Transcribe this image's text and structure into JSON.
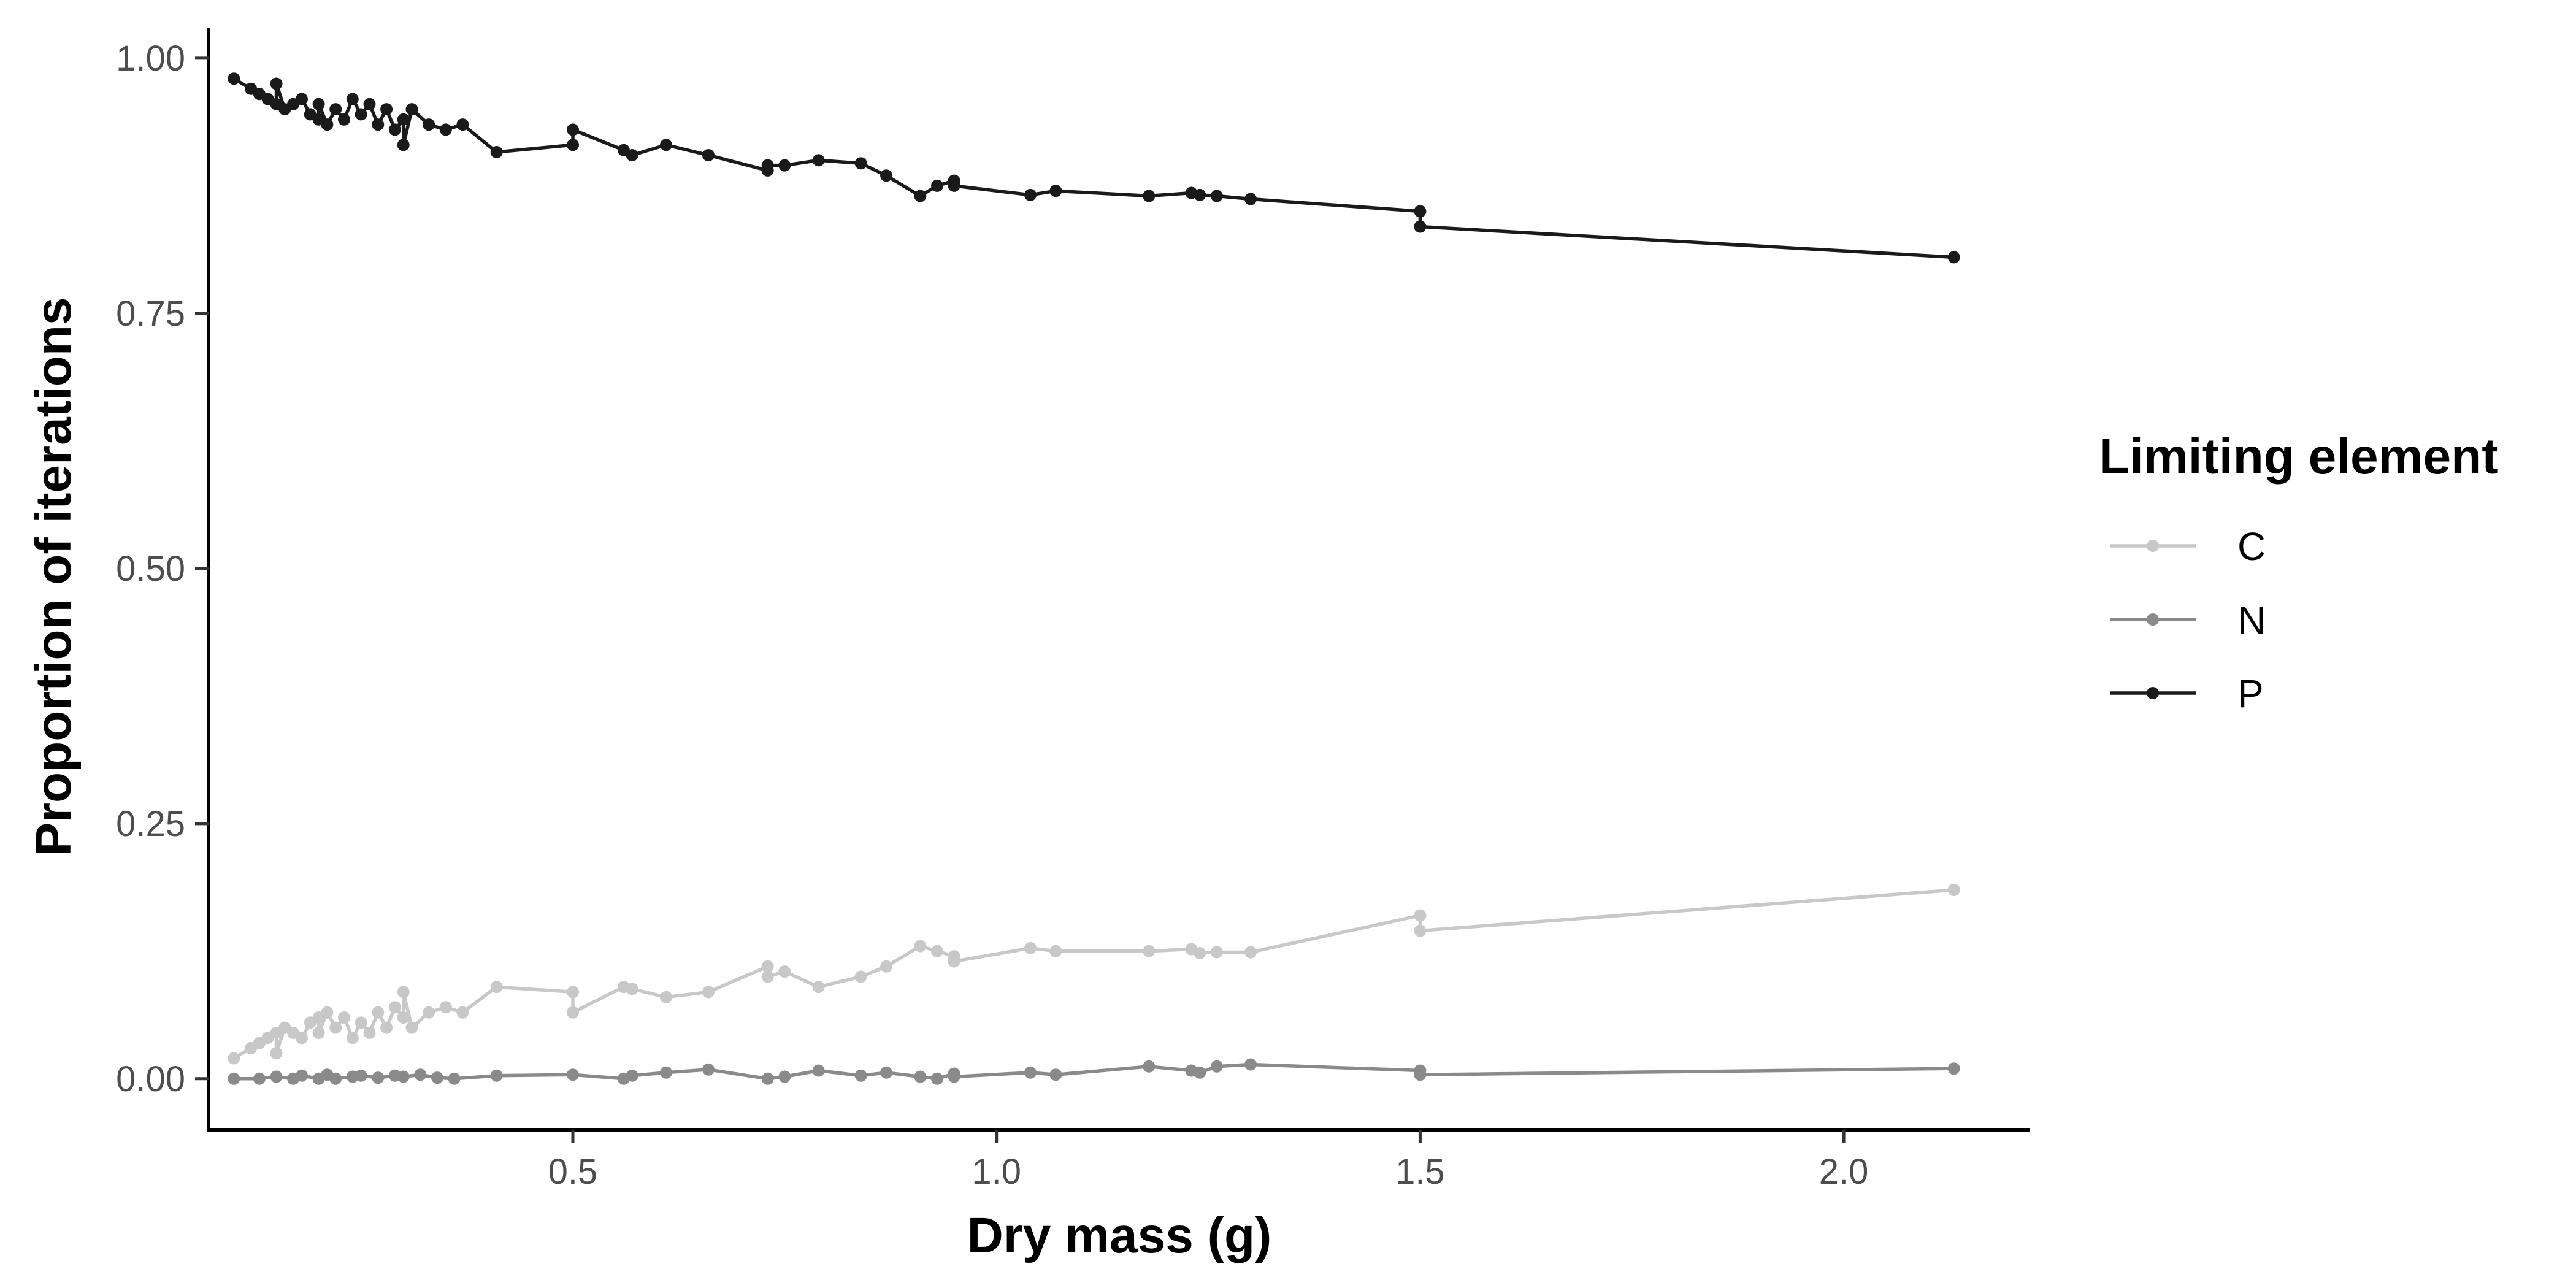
{
  "chart_data": {
    "type": "line",
    "title": "",
    "xlabel": "Dry mass (g)",
    "ylabel": "Proportion of iterations",
    "xlim": [
      0.07,
      2.22
    ],
    "ylim": [
      -0.05,
      1.03
    ],
    "x_ticks": [
      0.5,
      1.0,
      1.5,
      2.0
    ],
    "x_tick_labels": [
      "0.5",
      "1.0",
      "1.5",
      "2.0"
    ],
    "y_ticks": [
      0.0,
      0.25,
      0.5,
      0.75,
      1.0
    ],
    "y_tick_labels": [
      "0.00",
      "0.25",
      "0.50",
      "0.75",
      "1.00"
    ],
    "grid": false,
    "legend": {
      "title": "Limiting element",
      "position": "right"
    },
    "series": [
      {
        "name": "C",
        "color": "#c8c8c8",
        "points": [
          [
            0.1,
            0.02
          ],
          [
            0.12,
            0.03
          ],
          [
            0.13,
            0.035
          ],
          [
            0.14,
            0.04
          ],
          [
            0.15,
            0.045
          ],
          [
            0.15,
            0.025
          ],
          [
            0.16,
            0.05
          ],
          [
            0.17,
            0.045
          ],
          [
            0.18,
            0.04
          ],
          [
            0.19,
            0.055
          ],
          [
            0.2,
            0.06
          ],
          [
            0.2,
            0.045
          ],
          [
            0.21,
            0.065
          ],
          [
            0.22,
            0.05
          ],
          [
            0.23,
            0.06
          ],
          [
            0.24,
            0.04
          ],
          [
            0.25,
            0.055
          ],
          [
            0.26,
            0.045
          ],
          [
            0.27,
            0.065
          ],
          [
            0.28,
            0.05
          ],
          [
            0.29,
            0.07
          ],
          [
            0.3,
            0.06
          ],
          [
            0.3,
            0.085
          ],
          [
            0.31,
            0.05
          ],
          [
            0.33,
            0.065
          ],
          [
            0.35,
            0.07
          ],
          [
            0.37,
            0.065
          ],
          [
            0.41,
            0.09
          ],
          [
            0.5,
            0.085
          ],
          [
            0.5,
            0.065
          ],
          [
            0.56,
            0.09
          ],
          [
            0.57,
            0.088
          ],
          [
            0.61,
            0.08
          ],
          [
            0.66,
            0.085
          ],
          [
            0.73,
            0.11
          ],
          [
            0.73,
            0.1
          ],
          [
            0.75,
            0.105
          ],
          [
            0.79,
            0.09
          ],
          [
            0.84,
            0.1
          ],
          [
            0.87,
            0.11
          ],
          [
            0.91,
            0.13
          ],
          [
            0.93,
            0.125
          ],
          [
            0.95,
            0.12
          ],
          [
            0.95,
            0.115
          ],
          [
            1.04,
            0.128
          ],
          [
            1.07,
            0.125
          ],
          [
            1.18,
            0.125
          ],
          [
            1.23,
            0.127
          ],
          [
            1.24,
            0.123
          ],
          [
            1.26,
            0.124
          ],
          [
            1.3,
            0.124
          ],
          [
            1.5,
            0.16
          ],
          [
            1.5,
            0.145
          ],
          [
            2.13,
            0.185
          ]
        ]
      },
      {
        "name": "N",
        "color": "#8a8a8a",
        "points": [
          [
            0.1,
            0.0
          ],
          [
            0.13,
            0.0
          ],
          [
            0.15,
            0.002
          ],
          [
            0.17,
            0.0
          ],
          [
            0.18,
            0.003
          ],
          [
            0.2,
            0.0
          ],
          [
            0.21,
            0.004
          ],
          [
            0.22,
            0.0
          ],
          [
            0.24,
            0.002
          ],
          [
            0.25,
            0.003
          ],
          [
            0.27,
            0.001
          ],
          [
            0.29,
            0.003
          ],
          [
            0.3,
            0.002
          ],
          [
            0.32,
            0.004
          ],
          [
            0.34,
            0.001
          ],
          [
            0.36,
            0.0
          ],
          [
            0.41,
            0.003
          ],
          [
            0.5,
            0.004
          ],
          [
            0.56,
            0.0
          ],
          [
            0.57,
            0.003
          ],
          [
            0.61,
            0.006
          ],
          [
            0.66,
            0.009
          ],
          [
            0.73,
            0.0
          ],
          [
            0.75,
            0.002
          ],
          [
            0.79,
            0.008
          ],
          [
            0.84,
            0.003
          ],
          [
            0.87,
            0.006
          ],
          [
            0.91,
            0.002
          ],
          [
            0.93,
            0.0
          ],
          [
            0.95,
            0.005
          ],
          [
            0.95,
            0.002
          ],
          [
            1.04,
            0.006
          ],
          [
            1.07,
            0.004
          ],
          [
            1.18,
            0.012
          ],
          [
            1.23,
            0.008
          ],
          [
            1.24,
            0.006
          ],
          [
            1.26,
            0.012
          ],
          [
            1.3,
            0.014
          ],
          [
            1.5,
            0.008
          ],
          [
            1.5,
            0.004
          ],
          [
            2.13,
            0.01
          ]
        ]
      },
      {
        "name": "P",
        "color": "#1a1a1a",
        "points": [
          [
            0.1,
            0.98
          ],
          [
            0.12,
            0.97
          ],
          [
            0.13,
            0.965
          ],
          [
            0.14,
            0.96
          ],
          [
            0.15,
            0.955
          ],
          [
            0.15,
            0.975
          ],
          [
            0.16,
            0.95
          ],
          [
            0.17,
            0.955
          ],
          [
            0.18,
            0.96
          ],
          [
            0.19,
            0.945
          ],
          [
            0.2,
            0.94
          ],
          [
            0.2,
            0.955
          ],
          [
            0.21,
            0.935
          ],
          [
            0.22,
            0.95
          ],
          [
            0.23,
            0.94
          ],
          [
            0.24,
            0.96
          ],
          [
            0.25,
            0.945
          ],
          [
            0.26,
            0.955
          ],
          [
            0.27,
            0.935
          ],
          [
            0.28,
            0.95
          ],
          [
            0.29,
            0.93
          ],
          [
            0.3,
            0.94
          ],
          [
            0.3,
            0.915
          ],
          [
            0.31,
            0.95
          ],
          [
            0.33,
            0.935
          ],
          [
            0.35,
            0.93
          ],
          [
            0.37,
            0.935
          ],
          [
            0.41,
            0.908
          ],
          [
            0.5,
            0.915
          ],
          [
            0.5,
            0.93
          ],
          [
            0.56,
            0.91
          ],
          [
            0.57,
            0.905
          ],
          [
            0.61,
            0.915
          ],
          [
            0.66,
            0.905
          ],
          [
            0.73,
            0.89
          ],
          [
            0.73,
            0.895
          ],
          [
            0.75,
            0.895
          ],
          [
            0.79,
            0.9
          ],
          [
            0.84,
            0.897
          ],
          [
            0.87,
            0.885
          ],
          [
            0.91,
            0.865
          ],
          [
            0.93,
            0.875
          ],
          [
            0.95,
            0.88
          ],
          [
            0.95,
            0.875
          ],
          [
            1.04,
            0.866
          ],
          [
            1.07,
            0.87
          ],
          [
            1.18,
            0.865
          ],
          [
            1.23,
            0.868
          ],
          [
            1.24,
            0.866
          ],
          [
            1.26,
            0.865
          ],
          [
            1.3,
            0.862
          ],
          [
            1.5,
            0.85
          ],
          [
            1.5,
            0.835
          ],
          [
            2.13,
            0.805
          ]
        ]
      }
    ]
  }
}
